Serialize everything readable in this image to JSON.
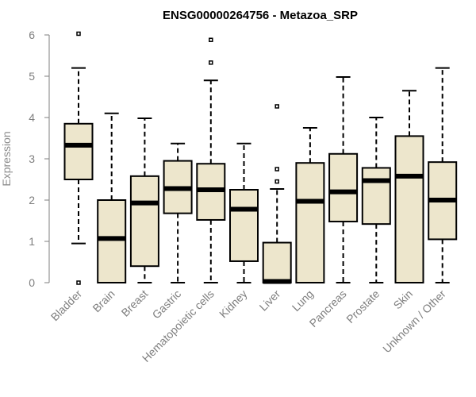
{
  "chart_data": {
    "type": "boxplot",
    "title": "ENSG00000264756 - Metazoa_SRP",
    "xlabel": "",
    "ylabel": "Expression",
    "ylim": [
      0,
      6
    ],
    "yticks": [
      0,
      1,
      2,
      3,
      4,
      5,
      6
    ],
    "colors": {
      "box_fill": "#ede6cc",
      "stroke": "#000000",
      "axis_text": "#7f7f7f"
    },
    "categories": [
      "Bladder",
      "Brain",
      "Breast",
      "Gastric",
      "Hematopoietic cells",
      "Kidney",
      "Liver",
      "Lung",
      "Pancreas",
      "Prostate",
      "Skin",
      "Unknown / Other"
    ],
    "boxes": [
      {
        "category": "Bladder",
        "whisker_low": 0.95,
        "q1": 2.5,
        "median": 3.33,
        "q3": 3.85,
        "whisker_high": 5.2,
        "outliers": [
          6.03,
          0.0
        ]
      },
      {
        "category": "Brain",
        "whisker_low": 0.0,
        "q1": 0.0,
        "median": 1.07,
        "q3": 2.0,
        "whisker_high": 4.1,
        "outliers": []
      },
      {
        "category": "Breast",
        "whisker_low": 0.0,
        "q1": 0.4,
        "median": 1.93,
        "q3": 2.58,
        "whisker_high": 3.98,
        "outliers": []
      },
      {
        "category": "Gastric",
        "whisker_low": 0.0,
        "q1": 1.68,
        "median": 2.28,
        "q3": 2.95,
        "whisker_high": 3.37,
        "outliers": []
      },
      {
        "category": "Hematopoietic cells",
        "whisker_low": 0.0,
        "q1": 1.52,
        "median": 2.25,
        "q3": 2.88,
        "whisker_high": 4.9,
        "outliers": [
          5.88,
          5.33
        ]
      },
      {
        "category": "Kidney",
        "whisker_low": 0.0,
        "q1": 0.52,
        "median": 1.78,
        "q3": 2.25,
        "whisker_high": 3.37,
        "outliers": []
      },
      {
        "category": "Liver",
        "whisker_low": 0.0,
        "q1": 0.0,
        "median": 0.03,
        "q3": 0.97,
        "whisker_high": 2.27,
        "outliers": [
          4.27,
          2.75,
          2.45
        ]
      },
      {
        "category": "Lung",
        "whisker_low": 0.0,
        "q1": 0.0,
        "median": 1.97,
        "q3": 2.9,
        "whisker_high": 3.75,
        "outliers": []
      },
      {
        "category": "Pancreas",
        "whisker_low": 0.0,
        "q1": 1.48,
        "median": 2.2,
        "q3": 3.12,
        "whisker_high": 4.98,
        "outliers": []
      },
      {
        "category": "Prostate",
        "whisker_low": 0.0,
        "q1": 1.42,
        "median": 2.47,
        "q3": 2.78,
        "whisker_high": 4.0,
        "outliers": []
      },
      {
        "category": "Skin",
        "whisker_low": 0.0,
        "q1": 0.0,
        "median": 2.58,
        "q3": 3.55,
        "whisker_high": 4.65,
        "outliers": []
      },
      {
        "category": "Unknown / Other",
        "whisker_low": 0.0,
        "q1": 1.05,
        "median": 2.0,
        "q3": 2.92,
        "whisker_high": 5.2,
        "outliers": []
      }
    ]
  }
}
